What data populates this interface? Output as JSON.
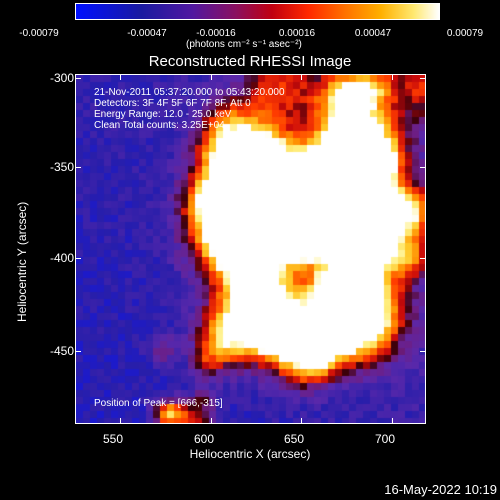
{
  "colorbar": {
    "tick_labels": [
      "-0.00079",
      "-0.00047",
      "-0.00016",
      "0.00016",
      "0.00047",
      "0.00079"
    ],
    "unit": "(photons cm⁻² s⁻¹ asec⁻²)"
  },
  "plot": {
    "title": "Reconstructed RHESSI Image",
    "info_lines": [
      "21-Nov-2011 05:37:20.000 to 05:43:20.000",
      "Detectors: 3F 4F 5F 6F 7F 8F, Att 0",
      "Energy Range: 12.0 - 25.0 keV",
      "Clean     Total counts: 3.25E+04"
    ],
    "peak_label": "Position of Peak = [666,-315]",
    "x_title": "Heliocentric X (arcsec)",
    "y_title": "Heliocentric Y (arcsec)",
    "x_ticks": [
      "550",
      "600",
      "650",
      "700"
    ],
    "y_ticks": [
      "-300",
      "-350",
      "-400",
      "-450"
    ]
  },
  "timestamp": "16-May-2022 10:19",
  "chart_data": {
    "type": "heatmap",
    "title": "Reconstructed RHESSI Image",
    "xlabel": "Heliocentric X (arcsec)",
    "ylabel": "Heliocentric Y (arcsec)",
    "xlim": [
      530,
      722
    ],
    "ylim": [
      -492,
      -296
    ],
    "colorbar_range": [
      -0.00079,
      0.00079
    ],
    "peak": [
      666,
      -315
    ],
    "colormap": "blue-purple-red-yellow-white"
  }
}
